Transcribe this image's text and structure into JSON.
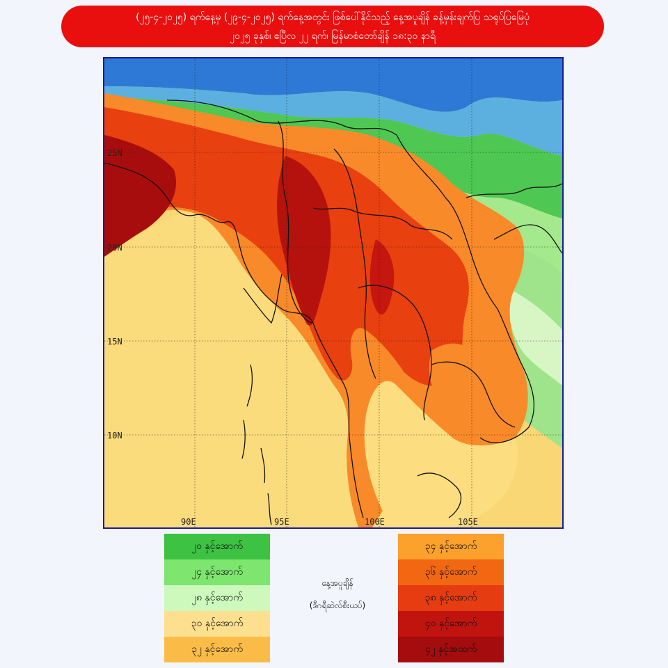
{
  "header": {
    "line1": "(၂၅-၄-၂၀၂၅) ရက်နေ့မှ (၂၉-၄-၂၀၂၅) ရက်နေ့အတွင်း ဖြစ်ပေါ်နိုင်သည့် နေ့အပူချိန် ခန့်မှန်းချက်ပြ သရုပ်ပြမြေပုံ",
    "line2": "၂၀၂၅ ခုနှစ်၊ ဧပြီလ ၂၂ ရက်၊ မြန်မာစံတော်ချိန် ၁၈:၃၀ နာရီ"
  },
  "map": {
    "lat_labels": [
      "25N",
      "20N",
      "15N",
      "10N"
    ],
    "lon_labels": [
      "90E",
      "95E",
      "100E",
      "105E"
    ]
  },
  "legend": {
    "title": "နေ့အပူချိန်",
    "unit": "(ဒီဂရီဆဲလ်စီးယပ်)",
    "left": [
      {
        "label": "၂၀ နှင့်အောက်",
        "color": "#3dc243"
      },
      {
        "label": "၂၄ နှင့်အောက်",
        "color": "#7ee56f"
      },
      {
        "label": "၂၈ နှင့်အောက်",
        "color": "#cdf9bd"
      },
      {
        "label": "၃၀ နှင့်အောက်",
        "color": "#fde08f"
      },
      {
        "label": "၃၂ နှင့်အောက်",
        "color": "#fbbc47"
      }
    ],
    "right": [
      {
        "label": "၃၄ နှင့်အောက်",
        "color": "#fca12b"
      },
      {
        "label": "၃၆ နှင့်အောက်",
        "color": "#f26711"
      },
      {
        "label": "၃၈ နှင့်အောက်",
        "color": "#e53c12"
      },
      {
        "label": "၄၀ နှင့်အောက်",
        "color": "#c2140f"
      },
      {
        "label": "၄၂ နှင့်အထက်",
        "color": "#a40c0e"
      }
    ]
  }
}
